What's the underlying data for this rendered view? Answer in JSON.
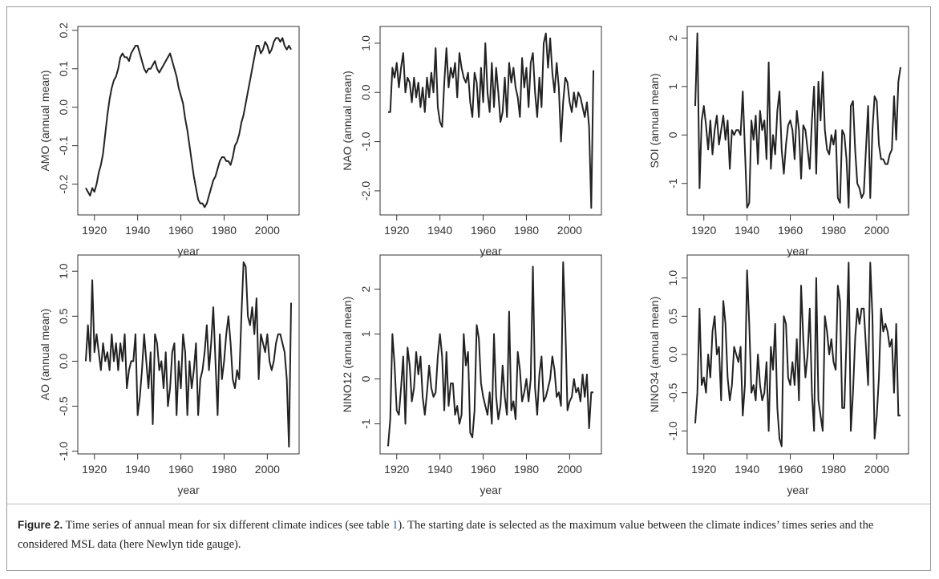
{
  "chart_data": [
    {
      "type": "line",
      "ylabel": "AMO (annual mean)",
      "xlabel": "year",
      "color": "#222222",
      "x": [
        1916,
        1917,
        1918,
        1919,
        1920,
        1921,
        1922,
        1923,
        1924,
        1925,
        1926,
        1927,
        1928,
        1929,
        1930,
        1931,
        1932,
        1933,
        1934,
        1935,
        1936,
        1937,
        1938,
        1939,
        1940,
        1941,
        1942,
        1943,
        1944,
        1945,
        1946,
        1947,
        1948,
        1949,
        1950,
        1951,
        1952,
        1953,
        1954,
        1955,
        1956,
        1957,
        1958,
        1959,
        1960,
        1961,
        1962,
        1963,
        1964,
        1965,
        1966,
        1967,
        1968,
        1969,
        1970,
        1971,
        1972,
        1973,
        1974,
        1975,
        1976,
        1977,
        1978,
        1979,
        1980,
        1981,
        1982,
        1983,
        1984,
        1985,
        1986,
        1987,
        1988,
        1989,
        1990,
        1991,
        1992,
        1993,
        1994,
        1995,
        1996,
        1997,
        1998,
        1999,
        2000,
        2001,
        2002,
        2003,
        2004,
        2005,
        2006,
        2007,
        2008,
        2009,
        2010,
        2011
      ],
      "values": [
        -0.21,
        -0.22,
        -0.23,
        -0.21,
        -0.22,
        -0.2,
        -0.17,
        -0.15,
        -0.12,
        -0.07,
        -0.02,
        0.02,
        0.05,
        0.07,
        0.08,
        0.1,
        0.13,
        0.14,
        0.13,
        0.13,
        0.12,
        0.14,
        0.15,
        0.16,
        0.16,
        0.14,
        0.12,
        0.1,
        0.09,
        0.1,
        0.1,
        0.11,
        0.12,
        0.1,
        0.09,
        0.1,
        0.11,
        0.12,
        0.13,
        0.14,
        0.12,
        0.1,
        0.08,
        0.05,
        0.03,
        0.01,
        -0.03,
        -0.06,
        -0.1,
        -0.14,
        -0.18,
        -0.21,
        -0.24,
        -0.25,
        -0.25,
        -0.26,
        -0.25,
        -0.23,
        -0.21,
        -0.19,
        -0.18,
        -0.16,
        -0.14,
        -0.13,
        -0.13,
        -0.14,
        -0.14,
        -0.15,
        -0.13,
        -0.1,
        -0.09,
        -0.07,
        -0.04,
        -0.02,
        0.01,
        0.04,
        0.07,
        0.1,
        0.13,
        0.16,
        0.16,
        0.14,
        0.15,
        0.17,
        0.16,
        0.14,
        0.15,
        0.17,
        0.18,
        0.18,
        0.17,
        0.18,
        0.16,
        0.15,
        0.16,
        0.15
      ],
      "xlim": [
        1912.3,
        2014.7
      ],
      "xticks": [
        1920,
        1940,
        1960,
        1980,
        2000
      ],
      "ylim": [
        -0.28,
        0.21
      ],
      "yticks": [
        -0.2,
        -0.1,
        {
          "value": 0,
          "label": "0.0"
        },
        0.1,
        0.2
      ]
    },
    {
      "type": "line",
      "ylabel": "NAO (annual mean)",
      "xlabel": "year",
      "color": "#222222",
      "x": [
        1916,
        1917,
        1918,
        1919,
        1920,
        1921,
        1922,
        1923,
        1924,
        1925,
        1926,
        1927,
        1928,
        1929,
        1930,
        1931,
        1932,
        1933,
        1934,
        1935,
        1936,
        1937,
        1938,
        1939,
        1940,
        1941,
        1942,
        1943,
        1944,
        1945,
        1946,
        1947,
        1948,
        1949,
        1950,
        1951,
        1952,
        1953,
        1954,
        1955,
        1956,
        1957,
        1958,
        1959,
        1960,
        1961,
        1962,
        1963,
        1964,
        1965,
        1966,
        1967,
        1968,
        1969,
        1970,
        1971,
        1972,
        1973,
        1974,
        1975,
        1976,
        1977,
        1978,
        1979,
        1980,
        1981,
        1982,
        1983,
        1984,
        1985,
        1986,
        1987,
        1988,
        1989,
        1990,
        1991,
        1992,
        1993,
        1994,
        1995,
        1996,
        1997,
        1998,
        1999,
        2000,
        2001,
        2002,
        2003,
        2004,
        2005,
        2006,
        2007,
        2008,
        2009,
        2010,
        2011
      ],
      "values": [
        -0.4,
        -0.4,
        0.5,
        0.3,
        0.6,
        0.1,
        0.5,
        0.8,
        0.0,
        0.3,
        0.2,
        -0.2,
        0.3,
        -0.1,
        0.2,
        -0.3,
        0.1,
        -0.4,
        0.3,
        -0.1,
        0.4,
        0.0,
        0.9,
        -0.3,
        -0.6,
        -0.7,
        0.2,
        0.9,
        0.1,
        0.5,
        0.3,
        0.6,
        -0.1,
        0.8,
        0.5,
        0.3,
        0.2,
        0.4,
        -0.2,
        -0.5,
        0.4,
        0.2,
        -0.5,
        0.5,
        -0.2,
        1.0,
        0.0,
        -0.4,
        0.6,
        -0.3,
        0.5,
        0.0,
        -0.6,
        -0.4,
        0.3,
        -0.5,
        0.6,
        0.2,
        0.5,
        0.1,
        -0.1,
        -0.5,
        0.7,
        0.1,
        0.5,
        -0.3,
        0.6,
        0.8,
        0.0,
        -0.5,
        0.3,
        -0.3,
        1.0,
        1.2,
        0.5,
        1.1,
        0.4,
        0.0,
        0.6,
        0.1,
        -1.0,
        -0.2,
        0.3,
        0.2,
        -0.2,
        -0.4,
        0.0,
        -0.3,
        0.0,
        -0.1,
        -0.3,
        -0.5,
        -0.2,
        -0.7,
        -2.35,
        0.45
      ],
      "xlim": [
        1912.3,
        2014.7
      ],
      "xticks": [
        1920,
        1940,
        1960,
        1980,
        2000
      ],
      "ylim": [
        -2.49,
        1.34
      ],
      "yticks": [
        {
          "value": -2,
          "label": "-2.0"
        },
        {
          "value": -1,
          "label": "-1.0"
        },
        {
          "value": 0,
          "label": "0.0"
        },
        {
          "value": 1,
          "label": "1.0"
        }
      ]
    },
    {
      "type": "line",
      "ylabel": "SOI (annual mean)",
      "xlabel": "year",
      "color": "#222222",
      "x": [
        1916,
        1917,
        1918,
        1919,
        1920,
        1921,
        1922,
        1923,
        1924,
        1925,
        1926,
        1927,
        1928,
        1929,
        1930,
        1931,
        1932,
        1933,
        1934,
        1935,
        1936,
        1937,
        1938,
        1939,
        1940,
        1941,
        1942,
        1943,
        1944,
        1945,
        1946,
        1947,
        1948,
        1949,
        1950,
        1951,
        1952,
        1953,
        1954,
        1955,
        1956,
        1957,
        1958,
        1959,
        1960,
        1961,
        1962,
        1963,
        1964,
        1965,
        1966,
        1967,
        1968,
        1969,
        1970,
        1971,
        1972,
        1973,
        1974,
        1975,
        1976,
        1977,
        1978,
        1979,
        1980,
        1981,
        1982,
        1983,
        1984,
        1985,
        1986,
        1987,
        1988,
        1989,
        1990,
        1991,
        1992,
        1993,
        1994,
        1995,
        1996,
        1997,
        1998,
        1999,
        2000,
        2001,
        2002,
        2003,
        2004,
        2005,
        2006,
        2007,
        2008,
        2009,
        2010,
        2011
      ],
      "values": [
        0.6,
        2.1,
        -1.1,
        0.3,
        0.6,
        0.2,
        -0.3,
        0.3,
        -0.4,
        0.1,
        0.4,
        -0.2,
        0.1,
        0.4,
        -0.1,
        0.3,
        -0.7,
        0.1,
        0.0,
        0.1,
        0.1,
        0.0,
        0.9,
        -0.3,
        -1.5,
        -1.4,
        0.3,
        -0.1,
        0.4,
        -0.6,
        0.5,
        0.1,
        0.3,
        -0.5,
        1.5,
        -0.7,
        0.0,
        -0.4,
        0.5,
        0.9,
        -0.3,
        -0.8,
        -0.2,
        0.2,
        0.3,
        0.1,
        -0.5,
        0.5,
        0.1,
        -0.9,
        0.2,
        0.1,
        -0.3,
        -0.7,
        0.3,
        1.0,
        -0.8,
        1.1,
        0.3,
        1.3,
        0.1,
        -0.3,
        -0.4,
        0.0,
        -0.2,
        0.1,
        -1.3,
        -1.4,
        0.1,
        0.0,
        -0.5,
        -1.5,
        0.6,
        0.7,
        -0.3,
        -1.0,
        -1.1,
        -1.3,
        -1.2,
        -0.3,
        0.6,
        -1.3,
        0.1,
        0.8,
        0.7,
        -0.2,
        -0.5,
        -0.5,
        -0.6,
        -0.6,
        -0.4,
        -0.3,
        0.8,
        -0.1,
        1.1,
        1.4
      ],
      "xlim": [
        1912.3,
        2014.7
      ],
      "xticks": [
        1920,
        1940,
        1960,
        1980,
        2000
      ],
      "ylim": [
        -1.65,
        2.24
      ],
      "yticks": [
        -1,
        0,
        1,
        2
      ]
    },
    {
      "type": "line",
      "ylabel": "AO (annual mean)",
      "xlabel": "year",
      "color": "#222222",
      "x": [
        1916,
        1917,
        1918,
        1919,
        1920,
        1921,
        1922,
        1923,
        1924,
        1925,
        1926,
        1927,
        1928,
        1929,
        1930,
        1931,
        1932,
        1933,
        1934,
        1935,
        1936,
        1937,
        1938,
        1939,
        1940,
        1941,
        1942,
        1943,
        1944,
        1945,
        1946,
        1947,
        1948,
        1949,
        1950,
        1951,
        1952,
        1953,
        1954,
        1955,
        1956,
        1957,
        1958,
        1959,
        1960,
        1961,
        1962,
        1963,
        1964,
        1965,
        1966,
        1967,
        1968,
        1969,
        1970,
        1971,
        1972,
        1973,
        1974,
        1975,
        1976,
        1977,
        1978,
        1979,
        1980,
        1981,
        1982,
        1983,
        1984,
        1985,
        1986,
        1987,
        1988,
        1989,
        1990,
        1991,
        1992,
        1993,
        1994,
        1995,
        1996,
        1997,
        1998,
        1999,
        2000,
        2001,
        2002,
        2003,
        2004,
        2005,
        2006,
        2007,
        2008,
        2009,
        2010,
        2011
      ],
      "values": [
        0.0,
        0.4,
        0.0,
        0.9,
        0.1,
        0.3,
        0.1,
        -0.1,
        0.2,
        0.0,
        0.1,
        -0.1,
        0.3,
        0.0,
        0.2,
        -0.1,
        0.2,
        0.0,
        0.3,
        -0.3,
        -0.1,
        0.0,
        0.0,
        0.3,
        -0.6,
        -0.4,
        -0.1,
        0.3,
        0.0,
        -0.3,
        0.1,
        -0.7,
        0.3,
        0.2,
        -0.1,
        0.0,
        -0.3,
        0.1,
        -0.5,
        -0.3,
        0.1,
        0.2,
        -0.6,
        0.0,
        -0.3,
        0.3,
        0.1,
        -0.6,
        0.0,
        -0.3,
        -0.1,
        0.2,
        -0.6,
        -0.2,
        -0.1,
        0.1,
        0.4,
        -0.1,
        0.2,
        0.6,
        0.0,
        -0.6,
        0.3,
        -0.2,
        0.0,
        0.3,
        0.5,
        0.2,
        -0.2,
        -0.3,
        -0.1,
        -0.2,
        0.5,
        1.1,
        1.05,
        0.5,
        0.4,
        0.6,
        0.3,
        0.7,
        -0.2,
        0.3,
        0.2,
        0.1,
        0.3,
        0.0,
        -0.1,
        0.0,
        0.2,
        0.3,
        0.3,
        0.2,
        0.1,
        -0.2,
        -0.95,
        0.65
      ],
      "xlim": [
        1912.3,
        2014.7
      ],
      "xticks": [
        1920,
        1940,
        1960,
        1980,
        2000
      ],
      "ylim": [
        -1.03,
        1.18
      ],
      "yticks": [
        {
          "value": -1,
          "label": "-1.0"
        },
        -0.5,
        {
          "value": 0,
          "label": "0.0"
        },
        0.5,
        {
          "value": 1,
          "label": "1.0"
        }
      ]
    },
    {
      "type": "line",
      "ylabel": "NINO12 (annual mean)",
      "xlabel": "year",
      "color": "#222222",
      "x": [
        1916,
        1917,
        1918,
        1919,
        1920,
        1921,
        1922,
        1923,
        1924,
        1925,
        1926,
        1927,
        1928,
        1929,
        1930,
        1931,
        1932,
        1933,
        1934,
        1935,
        1936,
        1937,
        1938,
        1939,
        1940,
        1941,
        1942,
        1943,
        1944,
        1945,
        1946,
        1947,
        1948,
        1949,
        1950,
        1951,
        1952,
        1953,
        1954,
        1955,
        1956,
        1957,
        1958,
        1959,
        1960,
        1961,
        1962,
        1963,
        1964,
        1965,
        1966,
        1967,
        1968,
        1969,
        1970,
        1971,
        1972,
        1973,
        1974,
        1975,
        1976,
        1977,
        1978,
        1979,
        1980,
        1981,
        1982,
        1983,
        1984,
        1985,
        1986,
        1987,
        1988,
        1989,
        1990,
        1991,
        1992,
        1993,
        1994,
        1995,
        1996,
        1997,
        1998,
        1999,
        2000,
        2001,
        2002,
        2003,
        2004,
        2005,
        2006,
        2007,
        2008,
        2009,
        2010,
        2011
      ],
      "values": [
        -1.5,
        -0.9,
        1.0,
        0.3,
        -0.7,
        -0.8,
        -0.2,
        0.5,
        -1.0,
        0.7,
        0.3,
        -0.5,
        -0.2,
        0.6,
        0.1,
        0.5,
        -0.4,
        -0.8,
        -0.3,
        0.3,
        -0.2,
        -0.4,
        -0.3,
        0.5,
        1.0,
        0.5,
        -0.7,
        0.6,
        -0.6,
        -0.1,
        -0.1,
        -0.8,
        -0.6,
        -1.0,
        -0.8,
        1.0,
        0.3,
        0.6,
        -1.2,
        -1.3,
        -0.7,
        1.2,
        0.9,
        -0.1,
        -0.4,
        -0.6,
        -0.8,
        -0.3,
        -1.0,
        1.0,
        -0.4,
        -0.9,
        -0.6,
        0.3,
        -0.4,
        -0.8,
        1.5,
        -0.7,
        -0.5,
        -0.9,
        0.6,
        0.2,
        -0.5,
        -0.3,
        0.0,
        -0.5,
        0.0,
        2.5,
        -0.2,
        -0.8,
        0.1,
        0.5,
        -0.5,
        -0.4,
        -0.2,
        0.0,
        0.5,
        0.2,
        -0.4,
        -0.3,
        -0.6,
        2.6,
        1.2,
        -0.7,
        -0.5,
        -0.4,
        0.0,
        -0.3,
        -0.2,
        -0.5,
        0.1,
        -0.4,
        0.1,
        -1.1,
        -0.3,
        -0.3
      ],
      "xlim": [
        1912.3,
        2014.7
      ],
      "xticks": [
        1920,
        1940,
        1960,
        1980,
        2000
      ],
      "ylim": [
        -1.67,
        2.76
      ],
      "yticks": [
        -1,
        0,
        1,
        2
      ]
    },
    {
      "type": "line",
      "ylabel": "NINO34 (annual mean)",
      "xlabel": "year",
      "color": "#222222",
      "x": [
        1916,
        1917,
        1918,
        1919,
        1920,
        1921,
        1922,
        1923,
        1924,
        1925,
        1926,
        1927,
        1928,
        1929,
        1930,
        1931,
        1932,
        1933,
        1934,
        1935,
        1936,
        1937,
        1938,
        1939,
        1940,
        1941,
        1942,
        1943,
        1944,
        1945,
        1946,
        1947,
        1948,
        1949,
        1950,
        1951,
        1952,
        1953,
        1954,
        1955,
        1956,
        1957,
        1958,
        1959,
        1960,
        1961,
        1962,
        1963,
        1964,
        1965,
        1966,
        1967,
        1968,
        1969,
        1970,
        1971,
        1972,
        1973,
        1974,
        1975,
        1976,
        1977,
        1978,
        1979,
        1980,
        1981,
        1982,
        1983,
        1984,
        1985,
        1986,
        1987,
        1988,
        1989,
        1990,
        1991,
        1992,
        1993,
        1994,
        1995,
        1996,
        1997,
        1998,
        1999,
        2000,
        2001,
        2002,
        2003,
        2004,
        2005,
        2006,
        2007,
        2008,
        2009,
        2010,
        2011
      ],
      "values": [
        -0.9,
        -0.5,
        0.6,
        -0.4,
        -0.3,
        -0.5,
        0.0,
        -0.3,
        0.3,
        0.5,
        0.0,
        0.1,
        -0.6,
        0.7,
        0.4,
        -0.3,
        -0.6,
        -0.4,
        0.1,
        0.0,
        -0.1,
        0.1,
        -0.8,
        -0.4,
        1.1,
        0.4,
        -0.5,
        -0.4,
        -0.6,
        0.0,
        -0.4,
        -0.6,
        -0.5,
        -0.1,
        -1.0,
        0.1,
        -0.2,
        0.4,
        -0.7,
        -1.1,
        -1.2,
        0.5,
        0.4,
        -0.3,
        -0.4,
        -0.1,
        -0.4,
        0.2,
        -0.6,
        0.9,
        0.2,
        -0.3,
        0.0,
        0.6,
        -0.5,
        -1.0,
        1.0,
        -0.6,
        -0.8,
        -1.0,
        0.5,
        0.3,
        0.0,
        0.2,
        -0.1,
        -0.2,
        0.9,
        0.7,
        -0.7,
        -0.7,
        0.2,
        1.2,
        -1.0,
        -0.5,
        0.2,
        0.6,
        0.4,
        0.6,
        0.6,
        0.1,
        -0.4,
        1.2,
        0.5,
        -1.1,
        -0.8,
        -0.3,
        0.6,
        0.3,
        0.4,
        0.3,
        0.1,
        0.2,
        -0.5,
        0.4,
        -0.8,
        -0.8
      ],
      "xlim": [
        1912.3,
        2014.7
      ],
      "xticks": [
        1920,
        1940,
        1960,
        1980,
        2000
      ],
      "ylim": [
        -1.3,
        1.3
      ],
      "yticks": [
        {
          "value": -1,
          "label": "-1.0"
        },
        -0.5,
        {
          "value": 0,
          "label": "0.0"
        },
        0.5,
        {
          "value": 1,
          "label": "1.0"
        }
      ]
    }
  ],
  "caption": {
    "label": "Figure 2.",
    "text_before": " Time series of annual mean for six different climate indices (see table ",
    "link": "1",
    "text_after": "). The starting date is selected as the maximum value between the climate indices’ times series and the considered MSL data (here Newlyn tide gauge)."
  }
}
